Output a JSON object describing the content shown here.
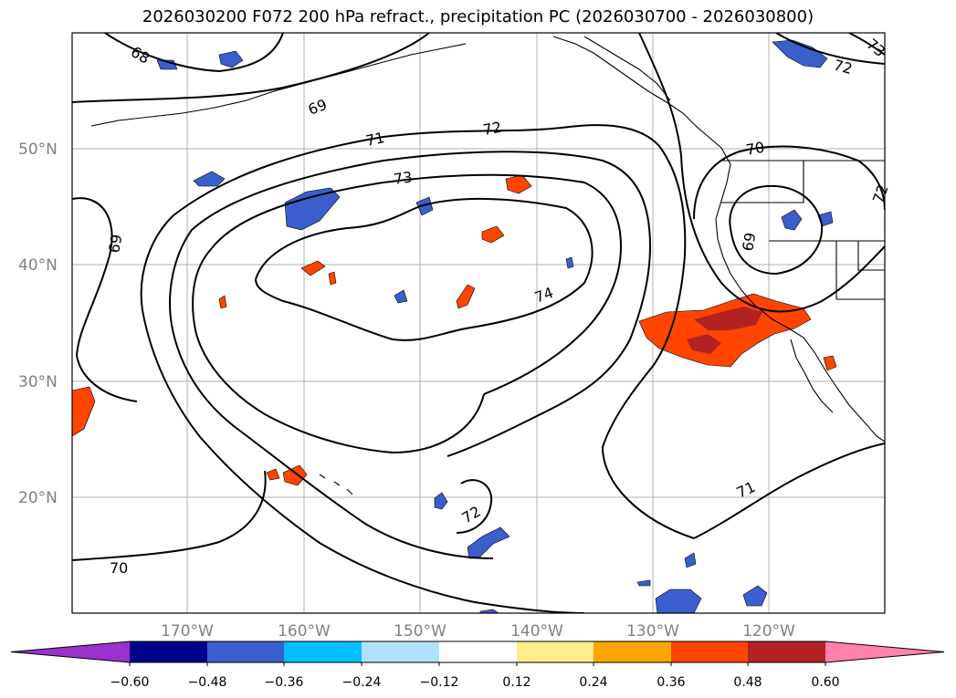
{
  "title": "2026030200 F072 200 hPa refract., precipitation PC (2026030700 - 2026030800)",
  "lat_labels": [
    "50°N",
    "40°N",
    "30°N",
    "20°N"
  ],
  "lon_labels": [
    "170°W",
    "160°W",
    "150°W",
    "140°W",
    "130°W",
    "120°W"
  ],
  "contour_labels": [
    "68",
    "69",
    "71",
    "72",
    "73",
    "74",
    "70",
    "69",
    "72",
    "73",
    "72",
    "70",
    "71",
    "72",
    "69"
  ],
  "colorbar": {
    "ticks": [
      "−0.60",
      "−0.48",
      "−0.36",
      "−0.24",
      "−0.12",
      "0.12",
      "0.24",
      "0.36",
      "0.48",
      "0.60"
    ],
    "colors": [
      "#9932cc",
      "#00008b",
      "#3a5fcd",
      "#00bfff",
      "#b0e2ff",
      "#ffffff",
      "#ffec8b",
      "#ffa500",
      "#ff4500",
      "#b22222",
      "#ff82ab"
    ]
  }
}
